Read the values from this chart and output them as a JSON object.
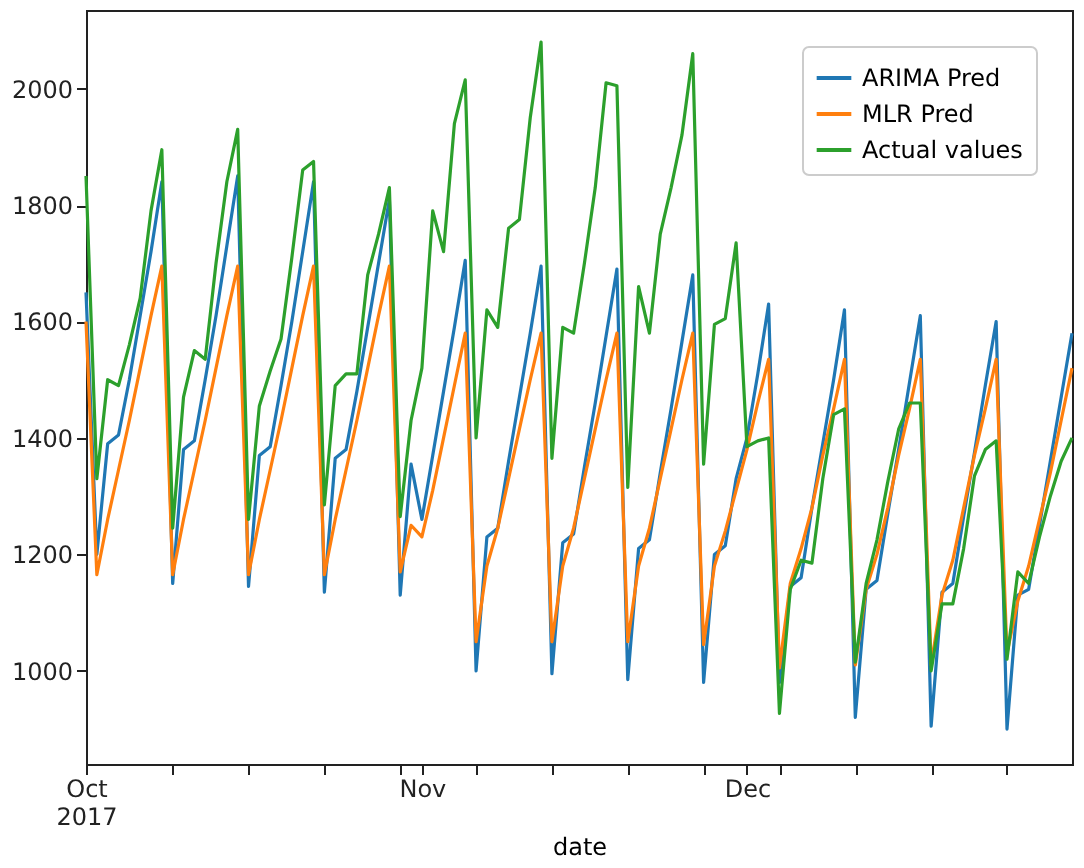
{
  "chart_data": {
    "type": "line",
    "xlabel": "date",
    "x": [
      "2017-10-01",
      "2017-10-02",
      "2017-10-03",
      "2017-10-04",
      "2017-10-05",
      "2017-10-06",
      "2017-10-07",
      "2017-10-08",
      "2017-10-09",
      "2017-10-10",
      "2017-10-11",
      "2017-10-12",
      "2017-10-13",
      "2017-10-14",
      "2017-10-15",
      "2017-10-16",
      "2017-10-17",
      "2017-10-18",
      "2017-10-19",
      "2017-10-20",
      "2017-10-21",
      "2017-10-22",
      "2017-10-23",
      "2017-10-24",
      "2017-10-25",
      "2017-10-26",
      "2017-10-27",
      "2017-10-28",
      "2017-10-29",
      "2017-10-30",
      "2017-10-31",
      "2017-11-01",
      "2017-11-02",
      "2017-11-03",
      "2017-11-04",
      "2017-11-05",
      "2017-11-06",
      "2017-11-07",
      "2017-11-08",
      "2017-11-09",
      "2017-11-10",
      "2017-11-11",
      "2017-11-12",
      "2017-11-13",
      "2017-11-14",
      "2017-11-15",
      "2017-11-16",
      "2017-11-17",
      "2017-11-18",
      "2017-11-19",
      "2017-11-20",
      "2017-11-21",
      "2017-11-22",
      "2017-11-23",
      "2017-11-24",
      "2017-11-25",
      "2017-11-26",
      "2017-11-27",
      "2017-11-28",
      "2017-11-29",
      "2017-11-30",
      "2017-12-01",
      "2017-12-02",
      "2017-12-03",
      "2017-12-04",
      "2017-12-05",
      "2017-12-06",
      "2017-12-07",
      "2017-12-08",
      "2017-12-09",
      "2017-12-10",
      "2017-12-11",
      "2017-12-12",
      "2017-12-13",
      "2017-12-14",
      "2017-12-15",
      "2017-12-16",
      "2017-12-17",
      "2017-12-18",
      "2017-12-19",
      "2017-12-20",
      "2017-12-21",
      "2017-12-22",
      "2017-12-23",
      "2017-12-24",
      "2017-12-25",
      "2017-12-26",
      "2017-12-27",
      "2017-12-28",
      "2017-12-29",
      "2017-12-30",
      "2017-12-31"
    ],
    "xlim": [
      "2017-10-01",
      "2017-12-31"
    ],
    "xticks": [
      {
        "value": "2017-10-01",
        "label": "Oct 2017"
      },
      {
        "value": "2017-10-09",
        "label": null
      },
      {
        "value": "2017-10-16",
        "label": null
      },
      {
        "value": "2017-10-23",
        "label": null
      },
      {
        "value": "2017-10-30",
        "label": null
      },
      {
        "value": "2017-11-01",
        "label": "Nov"
      },
      {
        "value": "2017-11-06",
        "label": null
      },
      {
        "value": "2017-11-13",
        "label": null
      },
      {
        "value": "2017-11-20",
        "label": null
      },
      {
        "value": "2017-11-27",
        "label": null
      },
      {
        "value": "2017-12-01",
        "label": "Dec"
      },
      {
        "value": "2017-12-04",
        "label": null
      },
      {
        "value": "2017-12-11",
        "label": null
      },
      {
        "value": "2017-12-18",
        "label": null
      },
      {
        "value": "2017-12-25",
        "label": null
      }
    ],
    "ylim": [
      840,
      2135
    ],
    "yticks": [
      {
        "value": 1000,
        "label": "1000"
      },
      {
        "value": 1200,
        "label": "1200"
      },
      {
        "value": 1400,
        "label": "1400"
      },
      {
        "value": 1600,
        "label": "1600"
      },
      {
        "value": 1800,
        "label": "1800"
      },
      {
        "value": 2000,
        "label": "2000"
      }
    ],
    "grid": false,
    "legend": "top right",
    "series": [
      {
        "name": "ARIMA Pred",
        "color": "#1f77b4",
        "values": [
          1650,
          1200,
          1390,
          1405,
          1500,
          1610,
          1720,
          1840,
          1150,
          1380,
          1395,
          1500,
          1610,
          1730,
          1850,
          1145,
          1370,
          1385,
          1490,
          1600,
          1720,
          1840,
          1135,
          1365,
          1380,
          1480,
          1590,
          1700,
          1810,
          1130,
          1355,
          1260,
          1370,
          1480,
          1590,
          1705,
          1000,
          1230,
          1245,
          1360,
          1470,
          1580,
          1695,
          995,
          1220,
          1235,
          1350,
          1460,
          1575,
          1690,
          985,
          1210,
          1225,
          1340,
          1450,
          1565,
          1680,
          980,
          1200,
          1215,
          1330,
          1400,
          1510,
          1630,
          980,
          1145,
          1160,
          1280,
          1390,
          1500,
          1620,
          920,
          1140,
          1155,
          1270,
          1380,
          1495,
          1610,
          905,
          1135,
          1150,
          1265,
          1375,
          1490,
          1600,
          900,
          1130,
          1140,
          1250,
          1360,
          1470,
          1580
        ]
      },
      {
        "name": "MLR Pred",
        "color": "#ff7f0e",
        "values": [
          1600,
          1165,
          1260,
          1345,
          1430,
          1520,
          1610,
          1695,
          1165,
          1260,
          1345,
          1430,
          1520,
          1610,
          1695,
          1165,
          1260,
          1345,
          1430,
          1520,
          1610,
          1695,
          1165,
          1260,
          1345,
          1430,
          1520,
          1610,
          1695,
          1170,
          1250,
          1230,
          1310,
          1400,
          1490,
          1580,
          1050,
          1180,
          1245,
          1330,
          1415,
          1500,
          1580,
          1050,
          1180,
          1245,
          1330,
          1415,
          1500,
          1580,
          1050,
          1180,
          1245,
          1330,
          1415,
          1500,
          1580,
          1045,
          1180,
          1240,
          1310,
          1380,
          1460,
          1535,
          1005,
          1150,
          1210,
          1280,
          1370,
          1450,
          1535,
          1010,
          1140,
          1200,
          1280,
          1370,
          1450,
          1535,
          1010,
          1130,
          1190,
          1280,
          1370,
          1450,
          1535,
          1030,
          1120,
          1180,
          1260,
          1340,
          1430,
          1520
        ]
      },
      {
        "name": "Actual values",
        "color": "#2ca02c",
        "values": [
          1850,
          1330,
          1500,
          1490,
          1560,
          1640,
          1790,
          1895,
          1245,
          1470,
          1550,
          1535,
          1700,
          1840,
          1930,
          1260,
          1455,
          1515,
          1570,
          1710,
          1860,
          1875,
          1285,
          1490,
          1510,
          1510,
          1680,
          1750,
          1830,
          1265,
          1430,
          1520,
          1790,
          1720,
          1940,
          2015,
          1400,
          1620,
          1590,
          1760,
          1775,
          1950,
          2080,
          1365,
          1590,
          1580,
          1700,
          1830,
          2010,
          2005,
          1315,
          1660,
          1580,
          1750,
          1830,
          1920,
          2060,
          1355,
          1595,
          1605,
          1735,
          1385,
          1395,
          1400,
          927,
          1140,
          1190,
          1185,
          1330,
          1440,
          1450,
          1015,
          1150,
          1225,
          1325,
          1415,
          1460,
          1460,
          1000,
          1115,
          1115,
          1210,
          1335,
          1380,
          1395,
          1020,
          1170,
          1150,
          1230,
          1300,
          1360,
          1400
        ]
      }
    ]
  }
}
